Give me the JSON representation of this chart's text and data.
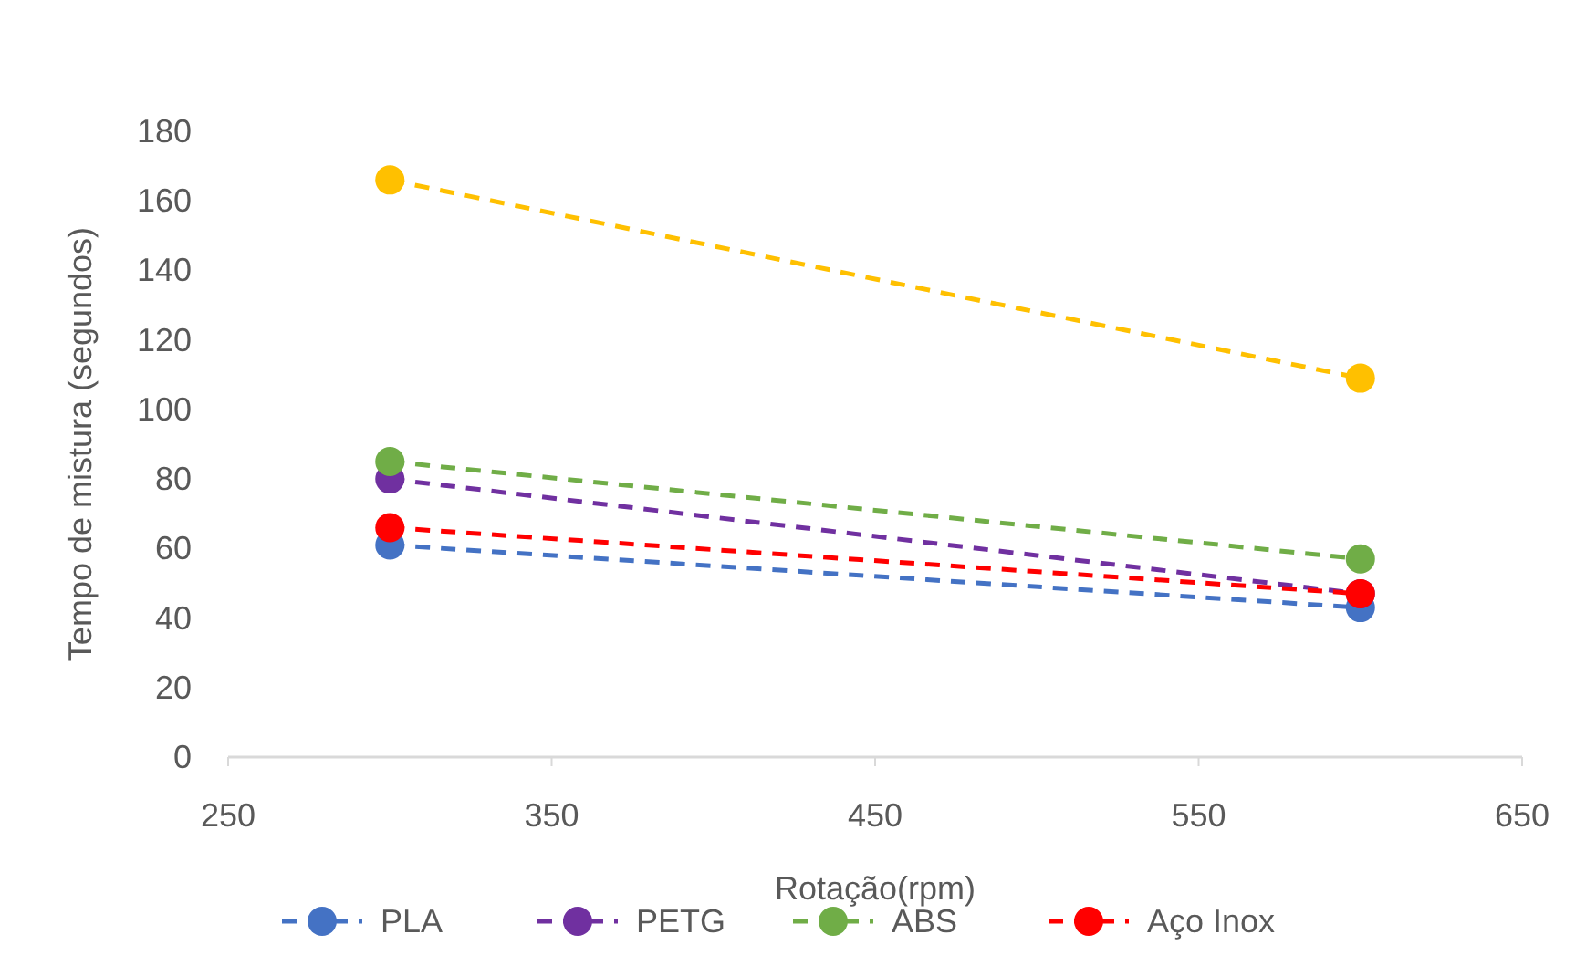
{
  "chart_data": {
    "type": "line",
    "xlabel": "Rotação(rpm)",
    "ylabel": "Tempo de mistura (segundos)",
    "x": [
      300,
      600
    ],
    "series": [
      {
        "name": "PLA",
        "color": "#4472c4",
        "values": [
          61,
          43
        ]
      },
      {
        "name": "PETG",
        "color": "#7030a0",
        "values": [
          80,
          47
        ]
      },
      {
        "name": "ABS",
        "color": "#70ad47",
        "values": [
          85,
          57
        ]
      },
      {
        "color": "#ffc000",
        "values": [
          166,
          109
        ]
      },
      {
        "name": "Aço Inox",
        "color": "#ff0000",
        "values": [
          66,
          47
        ]
      }
    ],
    "xlim": [
      250,
      650
    ],
    "xticks": [
      250,
      350,
      450,
      550,
      650
    ],
    "ylim": [
      0,
      180
    ],
    "yticks": [
      0,
      20,
      40,
      60,
      80,
      100,
      120,
      140,
      160,
      180
    ],
    "grid": false,
    "legend": "bottom",
    "marker": "circle",
    "line_style": "dashed"
  }
}
